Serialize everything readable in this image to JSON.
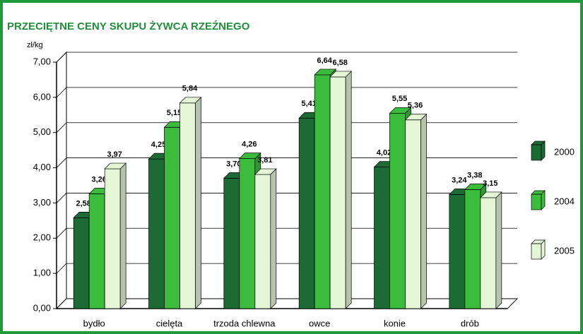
{
  "chart_data": {
    "type": "bar3d",
    "title": "PRZECIĘTNE CENY SKUPU ŻYWCA RZEŹNEGO",
    "y_label": "zł/kg",
    "categories": [
      "bydło",
      "cielęta",
      "trzoda chlewna",
      "owce",
      "konie",
      "drób"
    ],
    "series": [
      {
        "name": "2000",
        "color": "#1d6b34",
        "values": [
          2.58,
          4.25,
          3.7,
          5.41,
          4.02,
          3.24
        ],
        "value_labels": [
          "2,58",
          "4,25",
          "3,70",
          "5,41",
          "4,02",
          "3,24"
        ]
      },
      {
        "name": "2004",
        "color": "#3cbc3c",
        "values": [
          3.26,
          5.15,
          4.26,
          6.64,
          5.55,
          3.38
        ],
        "value_labels": [
          "3,26",
          "5,15",
          "4,26",
          "6,64",
          "5,55",
          "3,38"
        ]
      },
      {
        "name": "2005",
        "color": "#e4f6d6",
        "values": [
          3.97,
          5.84,
          3.81,
          6.58,
          5.36,
          3.15
        ],
        "value_labels": [
          "3,97",
          "5,84",
          "3,81",
          "6,58",
          "5,36",
          "3,15"
        ]
      }
    ],
    "ylim": [
      0,
      7
    ],
    "yticks": [
      {
        "value": 0,
        "label": "0,00"
      },
      {
        "value": 1,
        "label": "1,00"
      },
      {
        "value": 2,
        "label": "2,00"
      },
      {
        "value": 3,
        "label": "3,00"
      },
      {
        "value": 4,
        "label": "4,00"
      },
      {
        "value": 5,
        "label": "5,00"
      },
      {
        "value": 6,
        "label": "6,00"
      },
      {
        "value": 7,
        "label": "7,00"
      }
    ],
    "grid": true,
    "legend": "right"
  }
}
